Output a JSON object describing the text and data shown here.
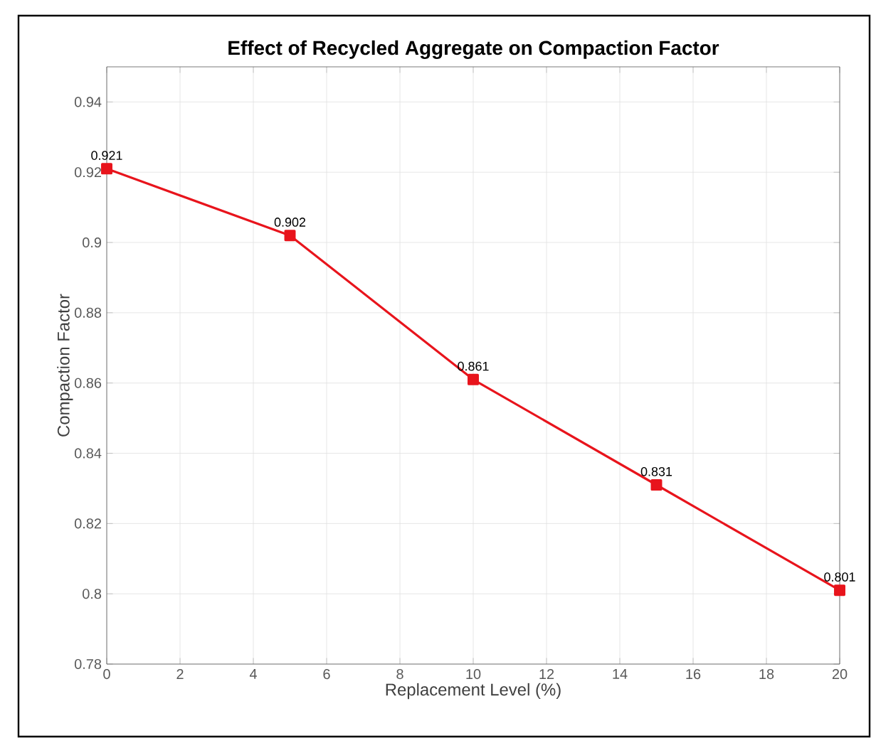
{
  "chart_data": {
    "type": "line",
    "title": "Effect of Recycled Aggregate on Compaction Factor",
    "xlabel": "Replacement Level (%)",
    "ylabel": "Compaction Factor",
    "x": [
      0,
      5,
      10,
      15,
      20
    ],
    "series": [
      {
        "color": "#e8141c",
        "values": [
          0.921,
          0.902,
          0.861,
          0.831,
          0.801
        ]
      }
    ],
    "xlim": [
      0,
      20
    ],
    "ylim": [
      0.78,
      0.95
    ],
    "xticks": [
      0,
      2,
      4,
      6,
      8,
      10,
      12,
      14,
      16,
      18,
      20
    ],
    "yticks": [
      0.78,
      0.8,
      0.82,
      0.84,
      0.86,
      0.88,
      0.9,
      0.92,
      0.94
    ],
    "grid": true,
    "marker": "square",
    "line_style": "solid",
    "data_labels": true
  }
}
